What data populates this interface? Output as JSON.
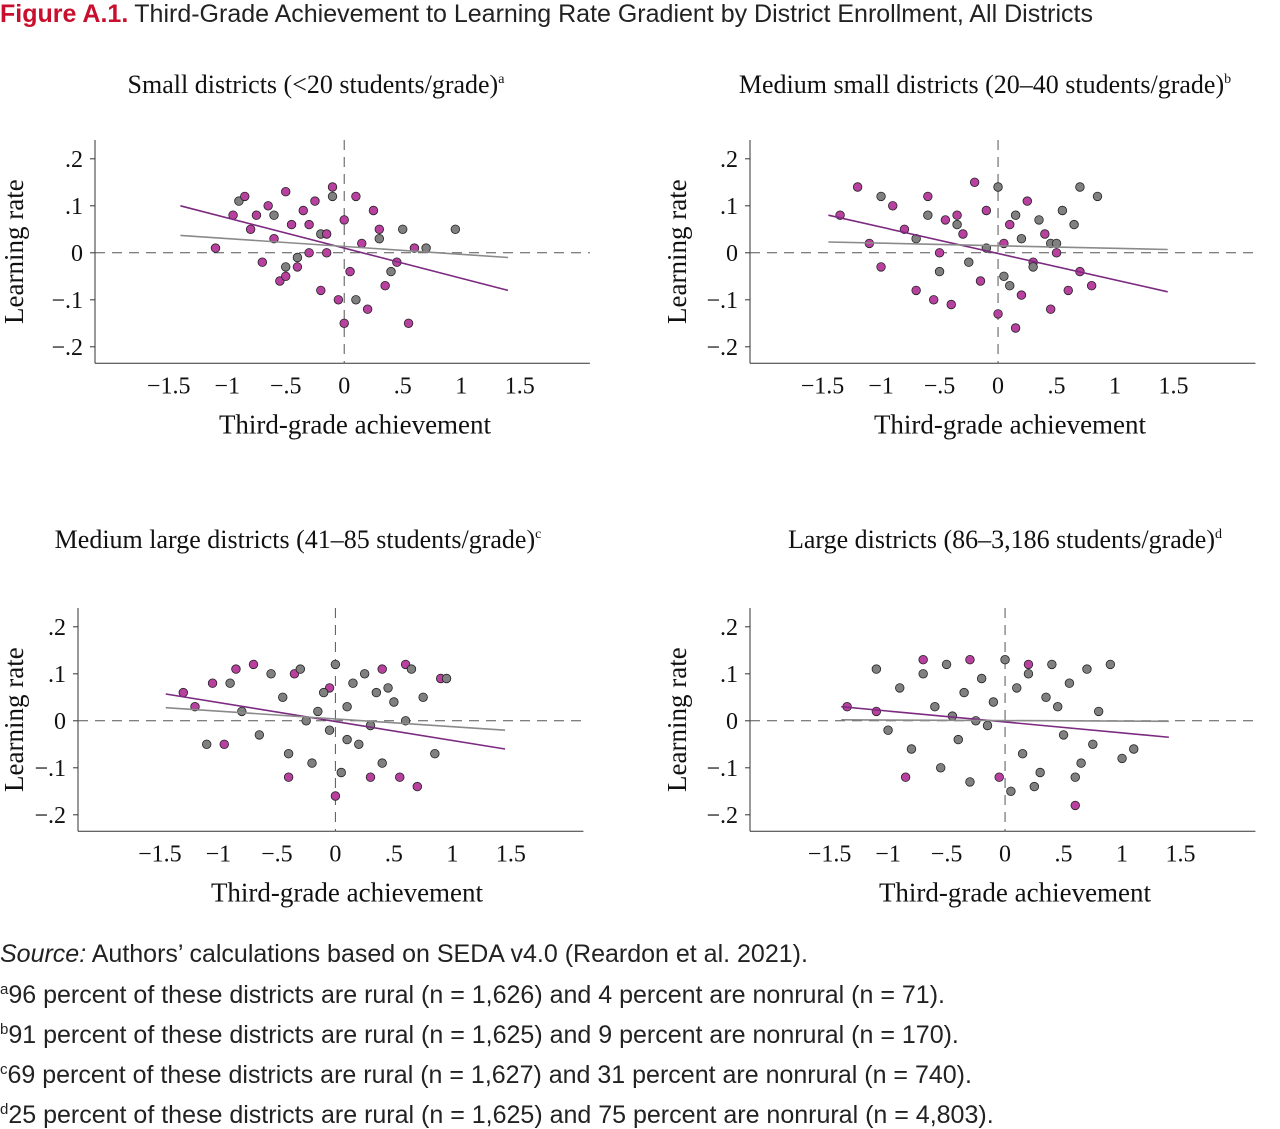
{
  "header": {
    "label": "Figure A.1.",
    "title": "Third-Grade Achievement to Learning Rate Gradient by District Enrollment, All Districts"
  },
  "chart_data": [
    {
      "type": "scatter",
      "title": "Small districts (<20 students/grade)",
      "title_note": "a",
      "xlabel": "Third-grade achievement",
      "ylabel": "Learning rate",
      "xlim": [
        -2.13,
        2.1
      ],
      "ylim": [
        -0.235,
        0.24
      ],
      "xticks": [
        {
          "value": -1.5,
          "label": "−1.5"
        },
        {
          "value": -1,
          "label": "−1"
        },
        {
          "value": -0.5,
          "label": "−.5"
        },
        0,
        {
          "value": 0.5,
          "label": ".5"
        },
        1,
        1.5
      ],
      "yticks": [
        {
          "value": 0.2,
          "label": ".2"
        },
        {
          "value": 0.1,
          "label": ".1"
        },
        0,
        {
          "value": -0.1,
          "label": "−.1"
        },
        {
          "value": -0.2,
          "label": "−.2"
        }
      ],
      "reference_lines": {
        "x": 0,
        "y": 0
      },
      "series": [
        {
          "color": "#808080",
          "x": [
            -0.9,
            -0.6,
            -0.4,
            -0.2,
            0.1,
            0.3,
            0.5,
            0.7,
            0.95,
            -0.1,
            0.4,
            -0.5
          ],
          "y": [
            0.11,
            0.08,
            -0.01,
            0.04,
            -0.1,
            0.03,
            0.05,
            0.01,
            0.05,
            0.12,
            -0.04,
            -0.03
          ]
        },
        {
          "color": "#b8409f",
          "x": [
            -1.1,
            -0.95,
            -0.85,
            -0.8,
            -0.7,
            -0.65,
            -0.6,
            -0.55,
            -0.5,
            -0.45,
            -0.4,
            -0.35,
            -0.3,
            -0.25,
            -0.2,
            -0.15,
            -0.1,
            -0.05,
            0,
            0.05,
            0.1,
            0.15,
            0.2,
            0.3,
            0.35,
            0.45,
            0.55,
            0.6,
            -0.75,
            -0.5,
            -0.3,
            0.0,
            0.25,
            -0.15
          ],
          "y": [
            0.01,
            0.08,
            0.12,
            0.05,
            -0.02,
            0.1,
            0.03,
            -0.06,
            0.13,
            0.06,
            -0.03,
            0.09,
            0.0,
            0.11,
            -0.08,
            0.04,
            0.14,
            -0.1,
            0.07,
            -0.04,
            0.12,
            0.02,
            -0.12,
            0.05,
            -0.07,
            -0.02,
            -0.15,
            0.01,
            0.08,
            -0.05,
            0.06,
            -0.15,
            0.09,
            0.0
          ]
        }
      ],
      "fit_lines": [
        {
          "color": "#7b2a80",
          "x": [
            -1.4,
            1.4
          ],
          "y": [
            0.1,
            -0.08
          ]
        },
        {
          "color": "#8a8a8a",
          "x": [
            -1.4,
            1.4
          ],
          "y": [
            0.037,
            -0.01
          ]
        }
      ]
    },
    {
      "type": "scatter",
      "title": "Medium small districts (20–40 students/grade)",
      "title_note": "b",
      "xlabel": "Third-grade achievement",
      "ylabel": "Learning rate",
      "xlim": [
        -2.12,
        2.2
      ],
      "ylim": [
        -0.235,
        0.24
      ],
      "xticks": [
        {
          "value": -1.5,
          "label": "−1.5"
        },
        {
          "value": -1,
          "label": "−1"
        },
        {
          "value": -0.5,
          "label": "−.5"
        },
        0,
        {
          "value": 0.5,
          "label": ".5"
        },
        1,
        1.5
      ],
      "yticks": [
        {
          "value": 0.2,
          "label": ".2"
        },
        {
          "value": 0.1,
          "label": ".1"
        },
        0,
        {
          "value": -0.1,
          "label": "−.1"
        },
        {
          "value": -0.2,
          "label": "−.2"
        }
      ],
      "reference_lines": {
        "x": 0,
        "y": 0
      },
      "series": [
        {
          "color": "#b8409f",
          "x": [
            -1.35,
            -1.2,
            -1.1,
            -1.0,
            -0.9,
            -0.8,
            -0.7,
            -0.6,
            -0.5,
            -0.45,
            -0.4,
            -0.3,
            -0.2,
            -0.15,
            -0.1,
            0.0,
            0.05,
            0.1,
            0.2,
            0.25,
            0.3,
            0.4,
            0.45,
            0.5,
            0.6,
            0.7,
            0.8,
            -0.55,
            -0.35,
            0.15
          ],
          "y": [
            0.08,
            0.14,
            0.02,
            -0.03,
            0.1,
            0.05,
            -0.08,
            0.12,
            0.0,
            0.07,
            -0.11,
            0.04,
            0.15,
            -0.06,
            0.09,
            -0.13,
            0.02,
            0.06,
            -0.09,
            0.11,
            -0.02,
            0.04,
            -0.12,
            0.0,
            -0.08,
            -0.04,
            -0.07,
            -0.1,
            0.08,
            -0.16
          ]
        },
        {
          "color": "#808080",
          "x": [
            -1.0,
            -0.7,
            -0.5,
            -0.35,
            -0.25,
            -0.1,
            0.0,
            0.05,
            0.15,
            0.2,
            0.3,
            0.35,
            0.45,
            0.55,
            0.65,
            0.7,
            0.85,
            -0.6,
            0.1,
            0.5
          ],
          "y": [
            0.12,
            0.03,
            -0.04,
            0.06,
            -0.02,
            0.01,
            0.14,
            -0.05,
            0.08,
            0.03,
            -0.03,
            0.07,
            0.02,
            0.09,
            0.06,
            0.14,
            0.12,
            0.08,
            -0.07,
            0.02
          ]
        }
      ],
      "fit_lines": [
        {
          "color": "#7b2a80",
          "x": [
            -1.45,
            1.45
          ],
          "y": [
            0.08,
            -0.083
          ]
        },
        {
          "color": "#8a8a8a",
          "x": [
            -1.45,
            1.45
          ],
          "y": [
            0.023,
            0.007
          ]
        }
      ]
    },
    {
      "type": "scatter",
      "title": "Medium large districts (41–85 students/grade)",
      "title_note": "c",
      "xlabel": "Third-grade achievement",
      "ylabel": "Learning rate",
      "xlim": [
        -2.2,
        2.12
      ],
      "ylim": [
        -0.235,
        0.24
      ],
      "xticks": [
        {
          "value": -1.5,
          "label": "−1.5"
        },
        {
          "value": -1,
          "label": "−1"
        },
        {
          "value": -0.5,
          "label": "−.5"
        },
        0,
        {
          "value": 0.5,
          "label": ".5"
        },
        1,
        1.5
      ],
      "yticks": [
        {
          "value": 0.2,
          "label": ".2"
        },
        {
          "value": 0.1,
          "label": ".1"
        },
        0,
        {
          "value": -0.1,
          "label": "−.1"
        },
        {
          "value": -0.2,
          "label": "−.2"
        }
      ],
      "reference_lines": {
        "x": 0,
        "y": 0
      },
      "series": [
        {
          "color": "#b8409f",
          "x": [
            -1.3,
            -1.2,
            -1.05,
            -0.95,
            -0.85,
            -0.7,
            -0.4,
            -0.35,
            -0.05,
            0.0,
            0.3,
            0.4,
            0.55,
            0.6,
            0.7,
            0.9
          ],
          "y": [
            0.06,
            0.03,
            0.08,
            -0.05,
            0.11,
            0.12,
            -0.12,
            0.1,
            0.07,
            -0.16,
            -0.12,
            0.11,
            -0.12,
            0.12,
            -0.14,
            0.09
          ]
        },
        {
          "color": "#808080",
          "x": [
            -1.1,
            -0.9,
            -0.8,
            -0.65,
            -0.55,
            -0.45,
            -0.4,
            -0.3,
            -0.25,
            -0.2,
            -0.1,
            -0.05,
            0.0,
            0.05,
            0.1,
            0.15,
            0.2,
            0.25,
            0.3,
            0.35,
            0.4,
            0.5,
            0.6,
            0.65,
            0.75,
            0.85,
            0.95,
            -0.15,
            0.1,
            0.45
          ],
          "y": [
            -0.05,
            0.08,
            0.02,
            -0.03,
            0.1,
            0.05,
            -0.07,
            0.11,
            0.0,
            -0.09,
            0.06,
            -0.02,
            0.12,
            -0.11,
            0.03,
            0.08,
            -0.05,
            0.1,
            -0.01,
            0.06,
            -0.09,
            0.04,
            0.0,
            0.11,
            0.05,
            -0.07,
            0.09,
            0.02,
            -0.04,
            0.07
          ]
        }
      ],
      "fit_lines": [
        {
          "color": "#7b2a80",
          "x": [
            -1.45,
            1.45
          ],
          "y": [
            0.057,
            -0.06
          ]
        },
        {
          "color": "#8a8a8a",
          "x": [
            -1.45,
            1.45
          ],
          "y": [
            0.028,
            -0.02
          ]
        }
      ]
    },
    {
      "type": "scatter",
      "title": "Large districts (86–3,186 students/grade)",
      "title_note": "d",
      "xlabel": "Third-grade achievement",
      "ylabel": "Learning rate",
      "xlim": [
        -2.18,
        2.14
      ],
      "ylim": [
        -0.235,
        0.24
      ],
      "xticks": [
        {
          "value": -1.5,
          "label": "−1.5"
        },
        {
          "value": -1,
          "label": "−1"
        },
        {
          "value": -0.5,
          "label": "−.5"
        },
        0,
        {
          "value": 0.5,
          "label": ".5"
        },
        1,
        1.5
      ],
      "yticks": [
        {
          "value": 0.2,
          "label": ".2"
        },
        {
          "value": 0.1,
          "label": ".1"
        },
        0,
        {
          "value": -0.1,
          "label": "−.1"
        },
        {
          "value": -0.2,
          "label": "−.2"
        }
      ],
      "reference_lines": {
        "x": 0,
        "y": 0
      },
      "series": [
        {
          "color": "#b8409f",
          "x": [
            -1.35,
            -1.1,
            -0.85,
            -0.3,
            -0.05,
            0.2,
            0.6,
            -0.7
          ],
          "y": [
            0.03,
            0.02,
            -0.12,
            0.13,
            -0.12,
            0.12,
            -0.18,
            0.13
          ]
        },
        {
          "color": "#808080",
          "x": [
            -1.1,
            -1.0,
            -0.9,
            -0.8,
            -0.7,
            -0.6,
            -0.55,
            -0.5,
            -0.4,
            -0.35,
            -0.3,
            -0.2,
            -0.15,
            -0.1,
            0.0,
            0.05,
            0.1,
            0.15,
            0.2,
            0.3,
            0.35,
            0.4,
            0.5,
            0.55,
            0.6,
            0.7,
            0.75,
            0.8,
            0.9,
            1.0,
            1.1,
            -0.25,
            0.25,
            0.45,
            -0.45,
            0.65
          ],
          "y": [
            0.11,
            -0.02,
            0.07,
            -0.06,
            0.1,
            0.03,
            -0.1,
            0.12,
            -0.04,
            0.06,
            -0.13,
            0.09,
            -0.01,
            0.04,
            0.13,
            -0.15,
            0.07,
            -0.07,
            0.1,
            -0.11,
            0.05,
            0.12,
            -0.03,
            0.08,
            -0.12,
            0.11,
            -0.05,
            0.02,
            0.12,
            -0.08,
            -0.06,
            0.0,
            -0.14,
            0.03,
            0.01,
            -0.09
          ]
        }
      ],
      "fit_lines": [
        {
          "color": "#7b2a80",
          "x": [
            -1.4,
            1.4
          ],
          "y": [
            0.03,
            -0.035
          ]
        },
        {
          "color": "#8a8a8a",
          "x": [
            -1.4,
            1.4
          ],
          "y": [
            0.002,
            -0.001
          ]
        }
      ]
    }
  ],
  "source": {
    "label": "Source:",
    "text": " Authors’ calculations based on SEDA v4.0 (Reardon et al. 2021)."
  },
  "notes": [
    {
      "mark": "a",
      "text": "96 percent of these districts are rural (n = 1,626) and 4 percent are nonrural (n = 71)."
    },
    {
      "mark": "b",
      "text": "91 percent of these districts are rural (n = 1,625) and 9 percent are nonrural (n = 170)."
    },
    {
      "mark": "c",
      "text": "69 percent of these districts are rural (n = 1,627) and 31 percent are nonrural (n = 740)."
    },
    {
      "mark": "d",
      "text": "25 percent of these districts are rural (n = 1,625) and 75 percent are nonrural (n = 4,803)."
    }
  ]
}
